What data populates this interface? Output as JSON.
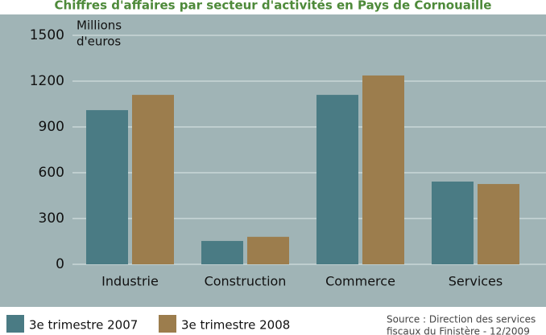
{
  "chart_data": {
    "type": "bar",
    "title": "Chiffres d'affaires par secteur d'activités en Pays de Cornouaille",
    "y_label": [
      "Millions",
      "d'euros"
    ],
    "categories": [
      "Industrie",
      "Construction",
      "Commerce",
      "Services"
    ],
    "series": [
      {
        "name": "3e trimestre 2007",
        "color": "#4a7b84",
        "values": [
          1010,
          153,
          1110,
          542
        ]
      },
      {
        "name": "3e trimestre 2008",
        "color": "#9c7d4d",
        "values": [
          1110,
          180,
          1237,
          526
        ]
      }
    ],
    "ylim": [
      0,
      1500
    ],
    "yticks": [
      0,
      300,
      600,
      900,
      1200,
      1500
    ],
    "grid": true,
    "source": [
      "Source : Direction des services",
      "fiscaux du Finistère - 12/2009"
    ]
  }
}
